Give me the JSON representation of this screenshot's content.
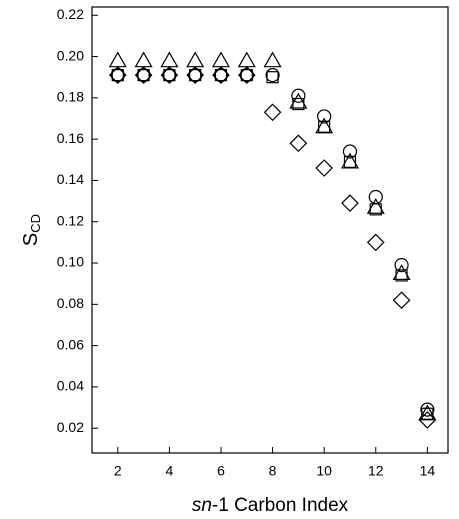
{
  "chart_data": {
    "type": "scatter",
    "xlabel_italic": "sn",
    "xlabel": "-1 Carbon Index",
    "ylabel": "S",
    "ylabel_sub": "CD",
    "x": [
      2,
      3,
      4,
      5,
      6,
      7,
      8,
      9,
      10,
      11,
      12,
      13,
      14
    ],
    "series": [
      {
        "marker": "circle",
        "color": "#000000",
        "values": [
          0.191,
          0.191,
          0.191,
          0.191,
          0.191,
          0.191,
          0.191,
          0.181,
          0.171,
          0.154,
          0.132,
          0.099,
          0.029
        ]
      },
      {
        "marker": "square",
        "color": "#000000",
        "values": [
          0.191,
          0.191,
          0.191,
          0.191,
          0.191,
          0.191,
          0.19,
          0.177,
          0.166,
          0.149,
          0.126,
          0.094,
          0.027
        ]
      },
      {
        "marker": "triangle",
        "color": "#000000",
        "values": [
          0.198,
          0.198,
          0.198,
          0.198,
          0.198,
          0.198,
          0.198,
          0.178,
          0.166,
          0.149,
          0.127,
          0.095,
          0.027
        ]
      },
      {
        "marker": "diamond",
        "color": "#000000",
        "values": [
          0.191,
          0.191,
          0.191,
          0.191,
          0.191,
          0.191,
          0.173,
          0.158,
          0.146,
          0.129,
          0.11,
          0.082,
          0.024
        ]
      }
    ],
    "xlim": [
      1,
      14.8
    ],
    "xticks": [
      2,
      4,
      6,
      8,
      10,
      12,
      14
    ],
    "ylim": [
      0.008,
      0.224
    ],
    "yticks": [
      {
        "value": 0.02,
        "label": "0.02"
      },
      {
        "value": 0.04,
        "label": "0.04"
      },
      {
        "value": 0.06,
        "label": "0.06"
      },
      {
        "value": 0.08,
        "label": "0.08"
      },
      {
        "value": 0.1,
        "label": "0.10"
      },
      {
        "value": 0.12,
        "label": "0.12"
      },
      {
        "value": 0.14,
        "label": "0.14"
      },
      {
        "value": 0.16,
        "label": "0.16"
      },
      {
        "value": 0.18,
        "label": "0.18"
      },
      {
        "value": 0.2,
        "label": "0.20"
      },
      {
        "value": 0.22,
        "label": "0.22"
      }
    ],
    "grid": false
  }
}
